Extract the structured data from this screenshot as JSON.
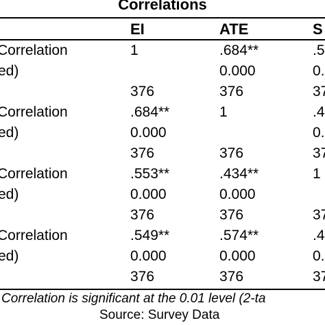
{
  "title": "Correlations",
  "headers": [
    "EI",
    "ATE",
    "S"
  ],
  "rows": [
    {
      "label": "Correlation",
      "c1": "1",
      "c2": ".684**",
      "c3": ".5"
    },
    {
      "label": "ed)",
      "c1": "",
      "c2": "0.000",
      "c3": "0."
    },
    {
      "label": "",
      "c1": "376",
      "c2": "376",
      "c3": "37"
    },
    {
      "label": "Correlation",
      "c1": ".684**",
      "c2": "1",
      "c3": ".4"
    },
    {
      "label": "ed)",
      "c1": "0.000",
      "c2": "",
      "c3": "0."
    },
    {
      "label": "",
      "c1": "376",
      "c2": "376",
      "c3": "37"
    },
    {
      "label": "Correlation",
      "c1": ".553**",
      "c2": ".434**",
      "c3": "1"
    },
    {
      "label": "ed)",
      "c1": "0.000",
      "c2": "0.000",
      "c3": ""
    },
    {
      "label": "",
      "c1": "376",
      "c2": "376",
      "c3": "37"
    },
    {
      "label": "Correlation",
      "c1": ".549**",
      "c2": ".574**",
      "c3": ".4"
    },
    {
      "label": "ed)",
      "c1": "0.000",
      "c2": "0.000",
      "c3": "0."
    },
    {
      "label": "",
      "c1": "376",
      "c2": "376",
      "c3": "37"
    }
  ],
  "footnote": "Correlation is significant at the 0.01 level (2-ta",
  "source": "Source: Survey Data"
}
